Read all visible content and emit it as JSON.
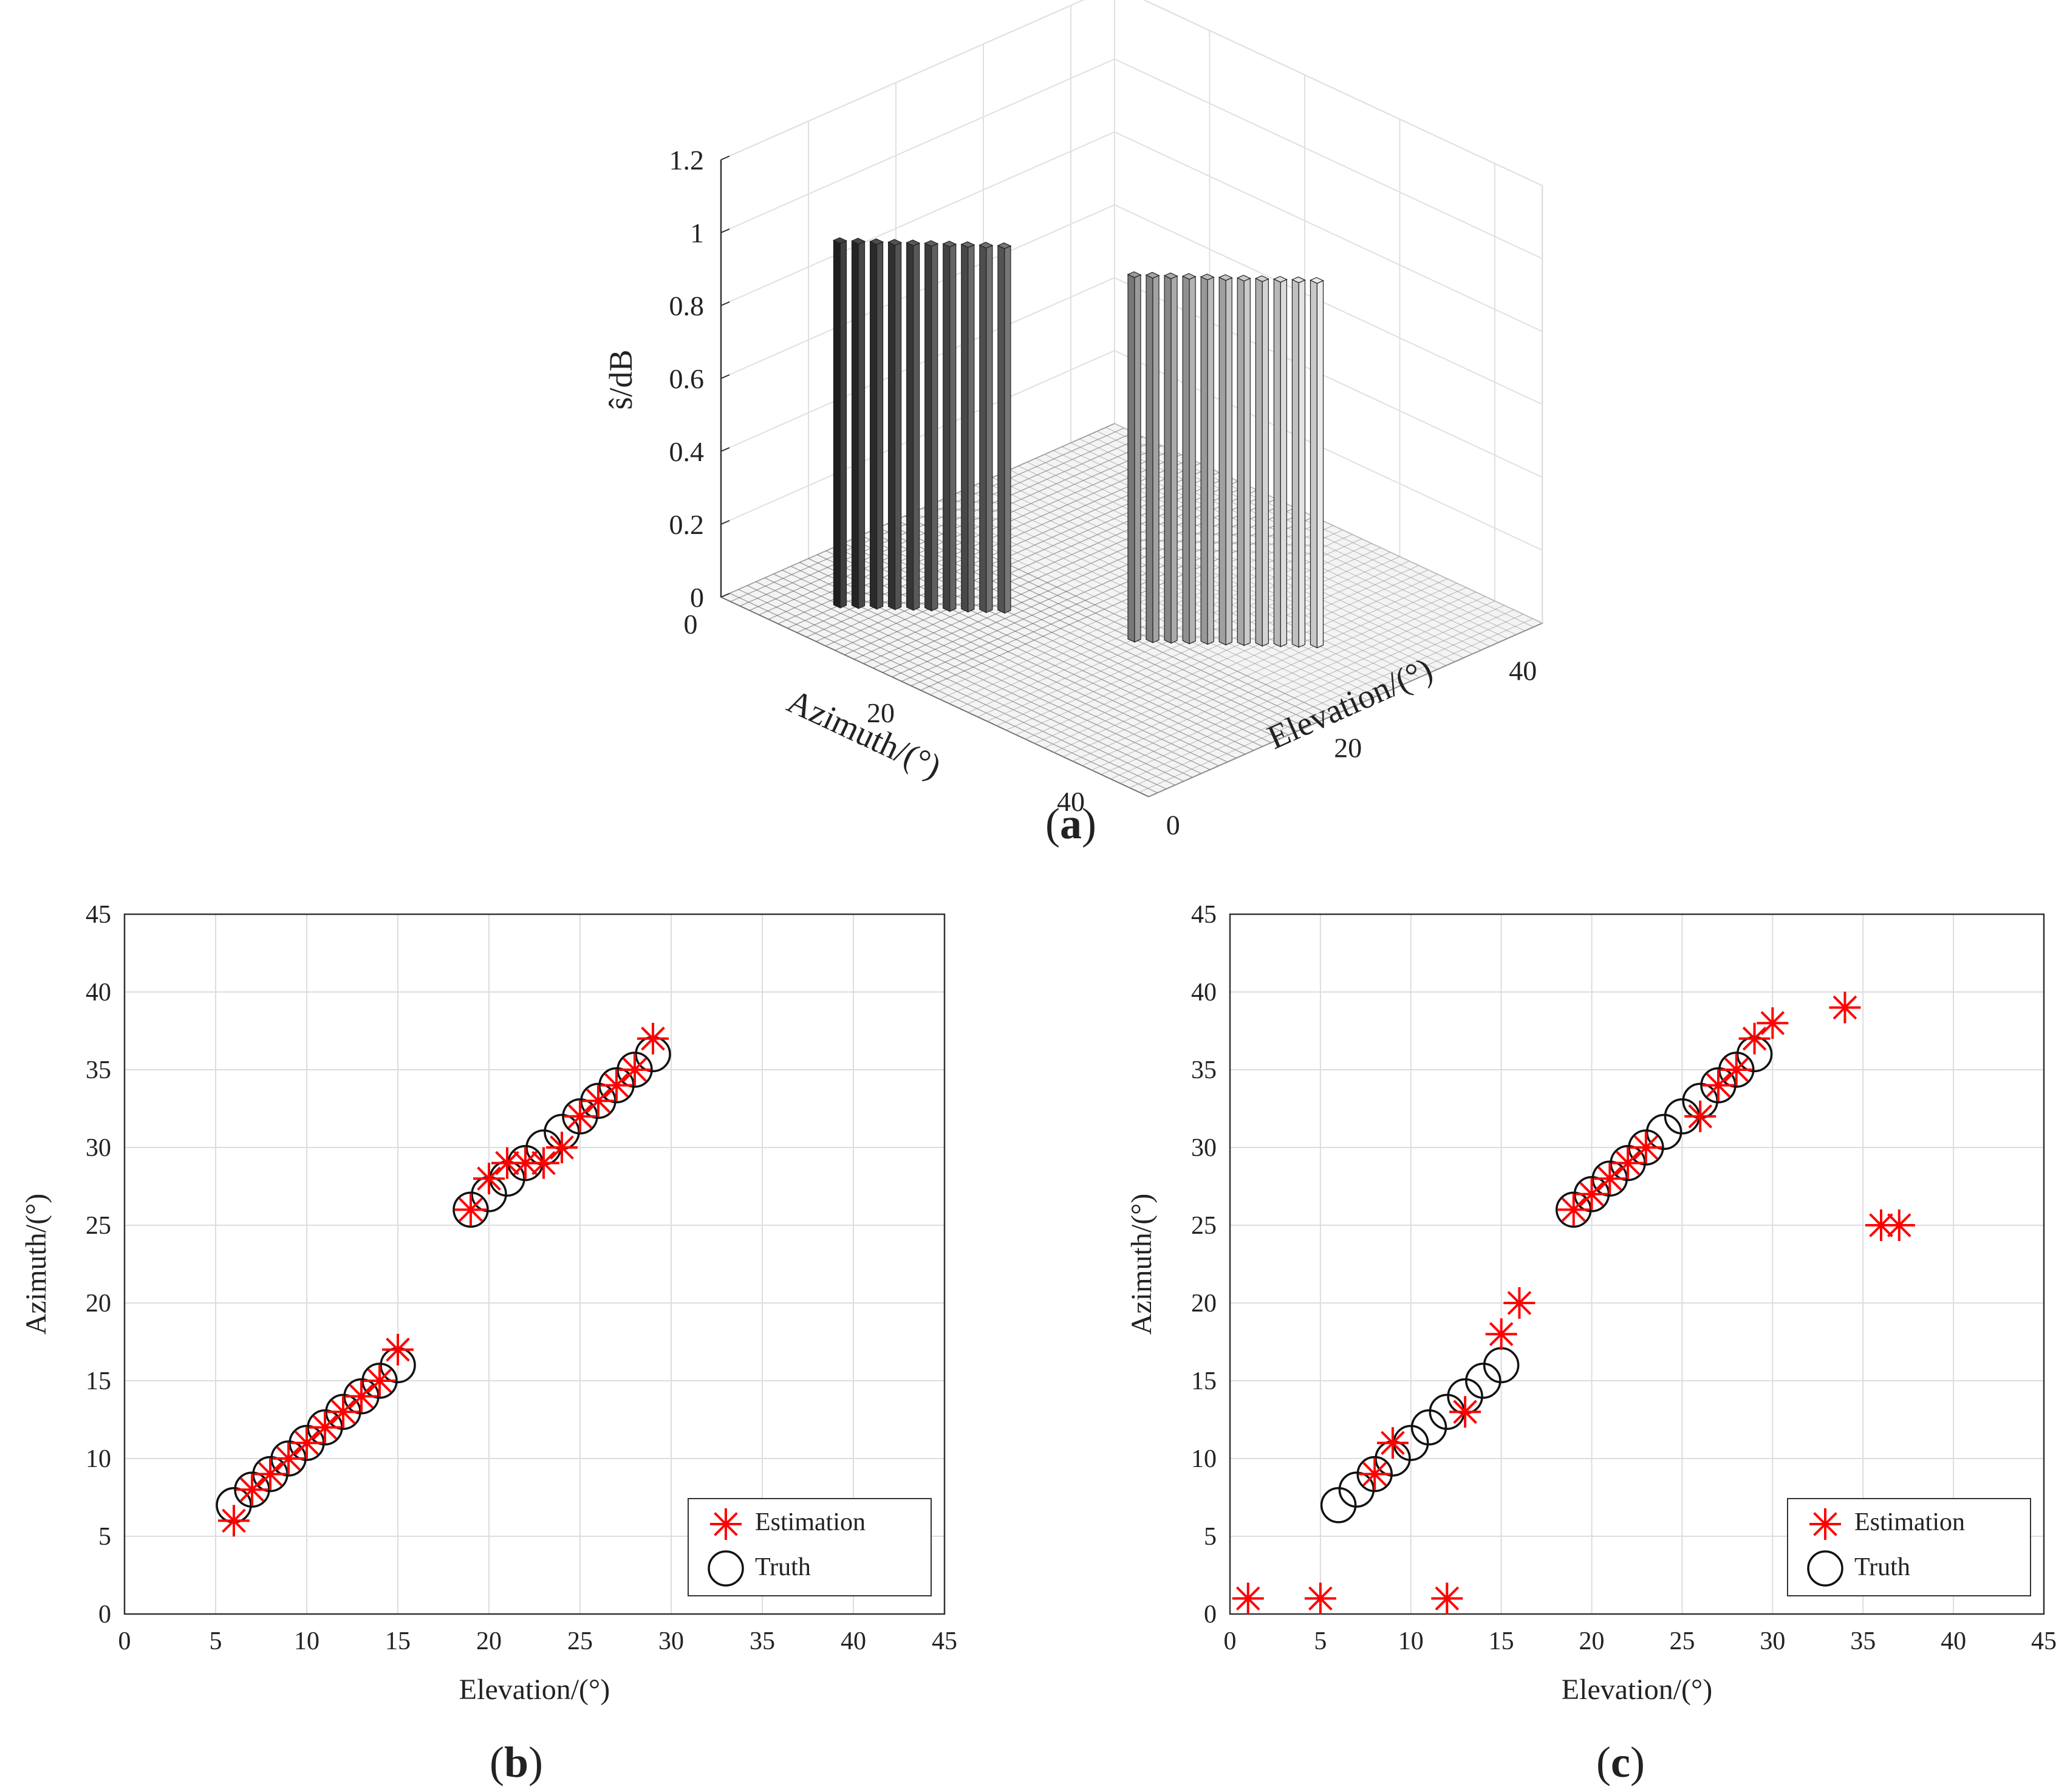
{
  "colors": {
    "estimation": "#ff0000",
    "truth": "#111111",
    "grid": "#dddddd",
    "axis": "#333333"
  },
  "labels": {
    "a": "a",
    "b": "b",
    "c": "c"
  },
  "chart_data": [
    {
      "type": "bar3d",
      "panel": "a",
      "zlabel": "ŝ/dB",
      "xlabel": "Azimuth/(°)",
      "ylabel": "Elevation/(°)",
      "zlim": [
        0,
        1.2
      ],
      "z_ticks": [
        "0",
        "0.2",
        "0.4",
        "0.6",
        "0.8",
        "1",
        "1.2"
      ],
      "azimuth_ticks": [
        "0",
        "20",
        "40"
      ],
      "elevation_ticks": [
        "0",
        "20",
        "40"
      ],
      "grid": true,
      "bars": [
        {
          "azimuth": 7,
          "elevation": 6,
          "value": 1.0
        },
        {
          "azimuth": 8,
          "elevation": 7,
          "value": 1.0
        },
        {
          "azimuth": 9,
          "elevation": 8,
          "value": 1.0
        },
        {
          "azimuth": 10,
          "elevation": 9,
          "value": 1.0
        },
        {
          "azimuth": 11,
          "elevation": 10,
          "value": 1.0
        },
        {
          "azimuth": 12,
          "elevation": 11,
          "value": 1.0
        },
        {
          "azimuth": 13,
          "elevation": 12,
          "value": 1.0
        },
        {
          "azimuth": 14,
          "elevation": 13,
          "value": 1.0
        },
        {
          "azimuth": 15,
          "elevation": 14,
          "value": 1.0
        },
        {
          "azimuth": 16,
          "elevation": 15,
          "value": 1.0
        },
        {
          "azimuth": 26,
          "elevation": 19,
          "value": 1.0
        },
        {
          "azimuth": 27,
          "elevation": 20,
          "value": 1.0
        },
        {
          "azimuth": 28,
          "elevation": 21,
          "value": 1.0
        },
        {
          "azimuth": 29,
          "elevation": 22,
          "value": 1.0
        },
        {
          "azimuth": 30,
          "elevation": 23,
          "value": 1.0
        },
        {
          "azimuth": 31,
          "elevation": 24,
          "value": 1.0
        },
        {
          "azimuth": 32,
          "elevation": 25,
          "value": 1.0
        },
        {
          "azimuth": 33,
          "elevation": 26,
          "value": 1.0
        },
        {
          "azimuth": 34,
          "elevation": 27,
          "value": 1.0
        },
        {
          "azimuth": 35,
          "elevation": 28,
          "value": 1.0
        },
        {
          "azimuth": 36,
          "elevation": 29,
          "value": 1.0
        }
      ]
    },
    {
      "type": "scatter",
      "panel": "b",
      "xlabel": "Elevation/(°)",
      "ylabel": "Azimuth/(°)",
      "xlim": [
        0,
        45
      ],
      "ylim": [
        0,
        45
      ],
      "x_ticks": [
        "0",
        "5",
        "10",
        "15",
        "20",
        "25",
        "30",
        "35",
        "40",
        "45"
      ],
      "y_ticks": [
        "0",
        "5",
        "10",
        "15",
        "20",
        "25",
        "30",
        "35",
        "40",
        "45"
      ],
      "grid": true,
      "legend": "bottom-right",
      "series": [
        {
          "name": "Estimation",
          "marker": "asterisk",
          "points": [
            [
              6,
              6
            ],
            [
              7,
              8
            ],
            [
              8,
              9
            ],
            [
              9,
              10
            ],
            [
              10,
              11
            ],
            [
              11,
              12
            ],
            [
              12,
              13
            ],
            [
              13,
              14
            ],
            [
              14,
              15
            ],
            [
              15,
              17
            ],
            [
              19,
              26
            ],
            [
              20,
              28
            ],
            [
              21,
              29
            ],
            [
              22,
              29
            ],
            [
              23,
              29
            ],
            [
              24,
              30
            ],
            [
              25,
              32
            ],
            [
              26,
              33
            ],
            [
              27,
              34
            ],
            [
              28,
              35
            ],
            [
              29,
              37
            ]
          ]
        },
        {
          "name": "Truth",
          "marker": "circle",
          "points": [
            [
              6,
              7
            ],
            [
              7,
              8
            ],
            [
              8,
              9
            ],
            [
              9,
              10
            ],
            [
              10,
              11
            ],
            [
              11,
              12
            ],
            [
              12,
              13
            ],
            [
              13,
              14
            ],
            [
              14,
              15
            ],
            [
              15,
              16
            ],
            [
              19,
              26
            ],
            [
              20,
              27
            ],
            [
              21,
              28
            ],
            [
              22,
              29
            ],
            [
              23,
              30
            ],
            [
              24,
              31
            ],
            [
              25,
              32
            ],
            [
              26,
              33
            ],
            [
              27,
              34
            ],
            [
              28,
              35
            ],
            [
              29,
              36
            ]
          ]
        }
      ]
    },
    {
      "type": "scatter",
      "panel": "c",
      "xlabel": "Elevation/(°)",
      "ylabel": "Azimuth/(°)",
      "xlim": [
        0,
        45
      ],
      "ylim": [
        0,
        45
      ],
      "x_ticks": [
        "0",
        "5",
        "10",
        "15",
        "20",
        "25",
        "30",
        "35",
        "40",
        "45"
      ],
      "y_ticks": [
        "0",
        "5",
        "10",
        "15",
        "20",
        "25",
        "30",
        "35",
        "40",
        "45"
      ],
      "grid": true,
      "legend": "bottom-right",
      "series": [
        {
          "name": "Estimation",
          "marker": "asterisk",
          "points": [
            [
              1,
              1
            ],
            [
              5,
              1
            ],
            [
              12,
              1
            ],
            [
              8,
              9
            ],
            [
              9,
              11
            ],
            [
              13,
              13
            ],
            [
              15,
              18
            ],
            [
              16,
              20
            ],
            [
              19,
              26
            ],
            [
              20,
              27
            ],
            [
              21,
              28
            ],
            [
              22,
              29
            ],
            [
              23,
              30
            ],
            [
              26,
              32
            ],
            [
              27,
              34
            ],
            [
              28,
              35
            ],
            [
              29,
              37
            ],
            [
              30,
              38
            ],
            [
              34,
              39
            ],
            [
              36,
              25
            ],
            [
              37,
              25
            ]
          ]
        },
        {
          "name": "Truth",
          "marker": "circle",
          "points": [
            [
              6,
              7
            ],
            [
              7,
              8
            ],
            [
              8,
              9
            ],
            [
              9,
              10
            ],
            [
              10,
              11
            ],
            [
              11,
              12
            ],
            [
              12,
              13
            ],
            [
              13,
              14
            ],
            [
              14,
              15
            ],
            [
              15,
              16
            ],
            [
              19,
              26
            ],
            [
              20,
              27
            ],
            [
              21,
              28
            ],
            [
              22,
              29
            ],
            [
              23,
              30
            ],
            [
              24,
              31
            ],
            [
              25,
              32
            ],
            [
              26,
              33
            ],
            [
              27,
              34
            ],
            [
              28,
              35
            ],
            [
              29,
              36
            ]
          ]
        }
      ]
    }
  ]
}
